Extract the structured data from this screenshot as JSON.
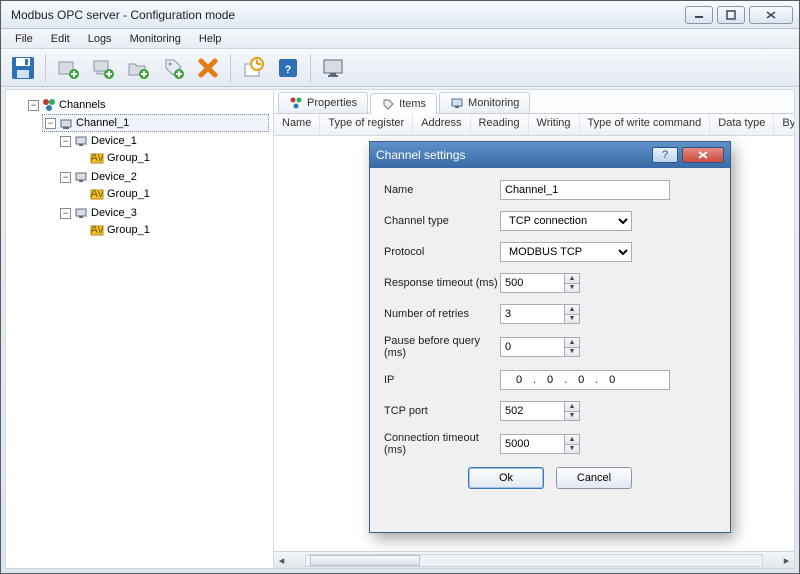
{
  "window": {
    "title": "Modbus OPC server - Configuration mode"
  },
  "menu": {
    "file": "File",
    "edit": "Edit",
    "logs": "Logs",
    "monitoring": "Monitoring",
    "help": "Help"
  },
  "tree": {
    "root": "Channels",
    "channel": "Channel_1",
    "devices": [
      {
        "name": "Device_1",
        "group": "Group_1"
      },
      {
        "name": "Device_2",
        "group": "Group_1"
      },
      {
        "name": "Device_3",
        "group": "Group_1"
      }
    ]
  },
  "tabs": {
    "properties": "Properties",
    "items": "Items",
    "monitoring": "Monitoring"
  },
  "columns": [
    "Name",
    "Type of register",
    "Address",
    "Reading",
    "Writing",
    "Type of write command",
    "Data type",
    "Byte o"
  ],
  "dialog": {
    "title": "Channel settings",
    "labels": {
      "name": "Name",
      "channel_type": "Channel type",
      "protocol": "Protocol",
      "response_timeout": "Response timeout (ms)",
      "retries": "Number of retries",
      "pause": "Pause before query (ms)",
      "ip": "IP",
      "tcp_port": "TCP port",
      "conn_timeout": "Connection timeout (ms)"
    },
    "values": {
      "name": "Channel_1",
      "channel_type": "TCP connection",
      "protocol": "MODBUS TCP",
      "response_timeout": "500",
      "retries": "3",
      "pause": "0",
      "ip": [
        "0",
        "0",
        "0",
        "0"
      ],
      "tcp_port": "502",
      "conn_timeout": "5000"
    },
    "buttons": {
      "ok": "Ok",
      "cancel": "Cancel"
    }
  },
  "colors": {
    "accent": "#3a6aa5",
    "save_blue": "#2f6fb3",
    "orange": "#e57b13",
    "green": "#3aa33a",
    "yellow": "#f4c430"
  }
}
